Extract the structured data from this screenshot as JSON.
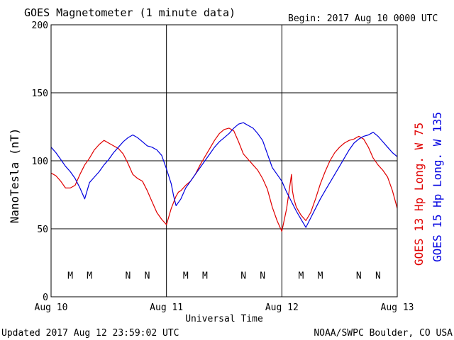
{
  "chart_data": {
    "type": "line",
    "title": "GOES Magnetometer (1 minute data)",
    "begin_label": "Begin:  2017 Aug 10 0000 UTC",
    "ylabel": "NanoTesla (nT)",
    "xlabel": "Universal Time",
    "ylim": [
      0,
      200
    ],
    "y_ticks": [
      "0",
      "50",
      "100",
      "150",
      "200"
    ],
    "x_ticks": [
      "Aug 10",
      "Aug 11",
      "Aug 12",
      "Aug 13"
    ],
    "xlim_hours": [
      0,
      72
    ],
    "grid": true,
    "footer_left": "Updated 2017 Aug 12 23:59:02 UTC",
    "footer_right": "NOAA/SWPC Boulder, CO USA",
    "series": [
      {
        "name": "GOES 13 Hp  Long. W 75",
        "color": "#e00000",
        "x": [
          0,
          1,
          2,
          3,
          4,
          5,
          6,
          7,
          8,
          9,
          10,
          11,
          12,
          13,
          14,
          15,
          16,
          17,
          18,
          19,
          20,
          21,
          22,
          23,
          24,
          25,
          26,
          26.5,
          27,
          28,
          29,
          30,
          31,
          32,
          33,
          34,
          35,
          36,
          37,
          38,
          39,
          40,
          41,
          42,
          43,
          44,
          45,
          46,
          47,
          48,
          49,
          50,
          50.2,
          50.5,
          51,
          52,
          53,
          54,
          55,
          56,
          57,
          58,
          59,
          60,
          61,
          62,
          63,
          64,
          65,
          66,
          67,
          68,
          69,
          70,
          71,
          72
        ],
        "values": [
          91,
          89,
          85,
          80,
          80,
          82,
          90,
          97,
          102,
          108,
          112,
          115,
          113,
          111,
          109,
          105,
          98,
          90,
          87,
          85,
          78,
          70,
          62,
          57,
          53,
          65,
          74,
          77,
          78,
          82,
          85,
          90,
          97,
          103,
          109,
          115,
          120,
          123,
          124,
          122,
          114,
          105,
          101,
          97,
          93,
          87,
          79,
          66,
          56,
          48,
          65,
          90,
          78,
          72,
          66,
          60,
          56,
          62,
          72,
          83,
          92,
          100,
          106,
          110,
          113,
          115,
          116,
          118,
          116,
          110,
          102,
          97,
          93,
          88,
          78,
          65
        ]
      },
      {
        "name": "GOES 15 Hp  Long. W 135",
        "color": "#0000e0",
        "x": [
          0,
          1,
          2,
          3,
          4,
          5,
          6,
          7,
          8,
          9,
          10,
          11,
          12,
          13,
          14,
          15,
          16,
          17,
          18,
          19,
          20,
          21,
          22,
          23,
          24,
          25,
          25.5,
          26,
          27,
          28,
          29,
          30,
          31,
          32,
          33,
          34,
          35,
          36,
          37,
          38,
          39,
          40,
          41,
          42,
          43,
          44,
          45,
          46,
          47,
          48,
          49,
          50,
          51,
          52,
          53,
          54,
          55,
          56,
          57,
          58,
          59,
          60,
          61,
          62,
          63,
          64,
          65,
          66,
          67,
          68,
          69,
          70,
          71,
          72
        ],
        "values": [
          110,
          106,
          101,
          96,
          92,
          87,
          80,
          72,
          84,
          88,
          92,
          97,
          101,
          106,
          110,
          114,
          117,
          119,
          117,
          114,
          111,
          110,
          108,
          104,
          94,
          83,
          74,
          67,
          72,
          80,
          85,
          90,
          95,
          100,
          105,
          110,
          114,
          117,
          120,
          124,
          127,
          128,
          126,
          124,
          120,
          115,
          105,
          95,
          90,
          85,
          77,
          70,
          63,
          57,
          51,
          58,
          65,
          72,
          78,
          84,
          90,
          96,
          102,
          108,
          113,
          116,
          118,
          119,
          121,
          118,
          114,
          110,
          106,
          103
        ]
      }
    ],
    "event_marks": [
      {
        "label": "M",
        "hour": 4,
        "color": "#e00000"
      },
      {
        "label": "M",
        "hour": 8,
        "color": "#0000e0"
      },
      {
        "label": "N",
        "hour": 16,
        "color": "#e00000"
      },
      {
        "label": "N",
        "hour": 20,
        "color": "#0000e0"
      },
      {
        "label": "M",
        "hour": 28,
        "color": "#e00000"
      },
      {
        "label": "M",
        "hour": 32,
        "color": "#0000e0"
      },
      {
        "label": "N",
        "hour": 40,
        "color": "#e00000"
      },
      {
        "label": "N",
        "hour": 44,
        "color": "#0000e0"
      },
      {
        "label": "M",
        "hour": 52,
        "color": "#e00000"
      },
      {
        "label": "M",
        "hour": 56,
        "color": "#0000e0"
      },
      {
        "label": "N",
        "hour": 64,
        "color": "#e00000"
      },
      {
        "label": "N",
        "hour": 68,
        "color": "#0000e0"
      }
    ],
    "mark_level": 16
  }
}
